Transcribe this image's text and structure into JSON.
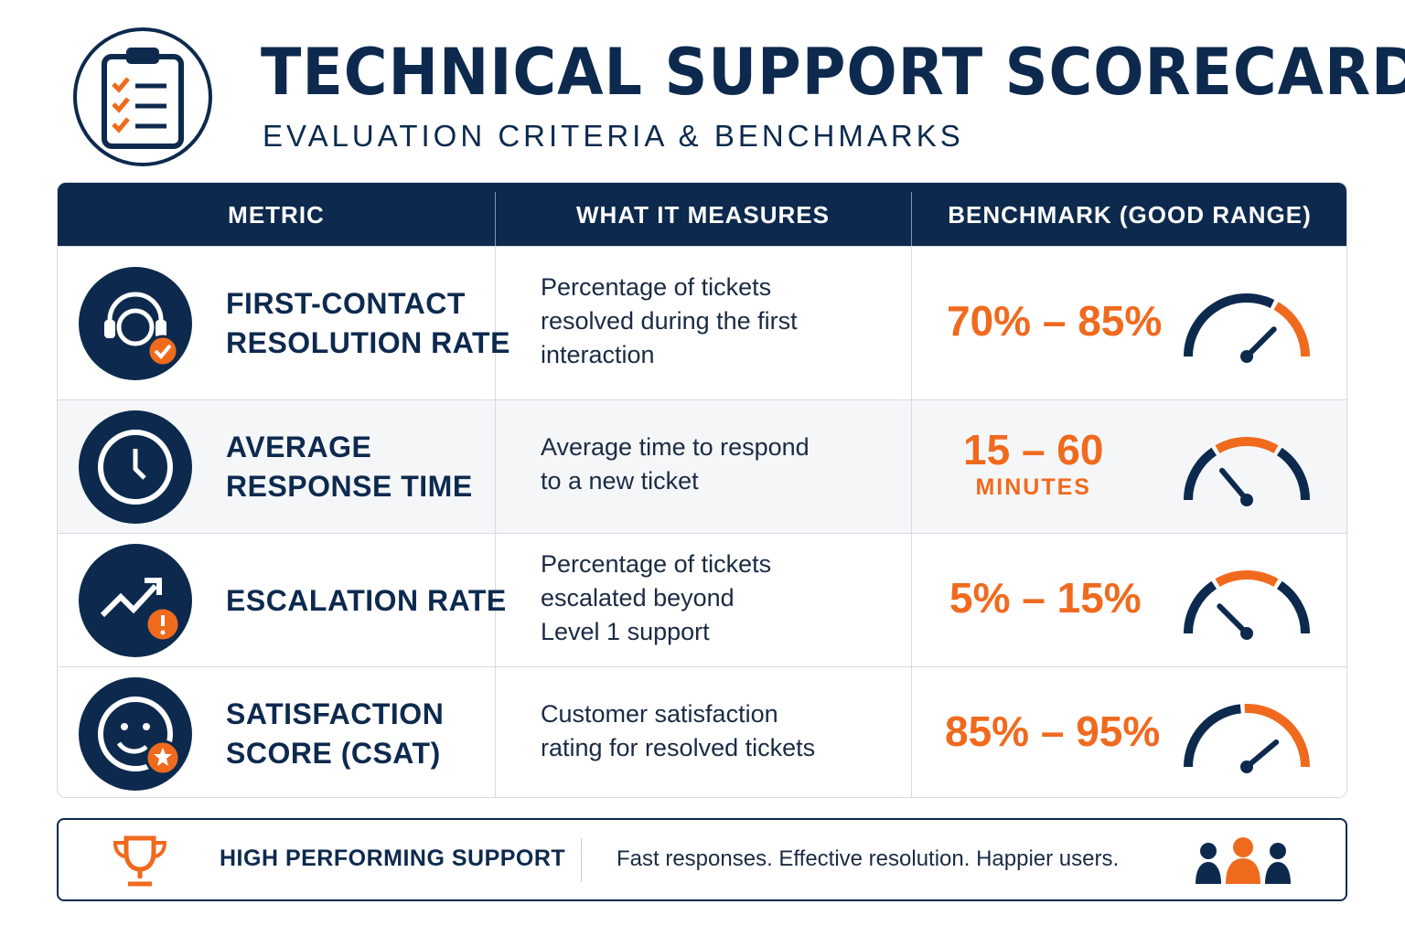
{
  "header": {
    "title": "TECHNICAL SUPPORT SCORECARD",
    "subtitle": "EVALUATION CRITERIA & BENCHMARKS"
  },
  "table": {
    "columns": [
      "METRIC",
      "WHAT IT MEASURES",
      "BENCHMARK (GOOD RANGE)"
    ],
    "rows": [
      {
        "metric": [
          "FIRST-CONTACT",
          "RESOLUTION RATE"
        ],
        "measures": [
          "Percentage of tickets",
          "resolved during the first",
          "interaction"
        ],
        "benchmark": "70% – 85%"
      },
      {
        "metric": [
          "AVERAGE",
          "RESPONSE TIME"
        ],
        "measures": [
          "Average time to respond",
          "to a new ticket"
        ],
        "benchmark": "15 – 60",
        "benchmark_unit": "MINUTES"
      },
      {
        "metric": [
          "ESCALATION RATE"
        ],
        "measures": [
          "Percentage of tickets",
          "escalated beyond",
          "Level 1 support"
        ],
        "benchmark": "5% – 15%"
      },
      {
        "metric": [
          "SATISFACTION",
          "SCORE (CSAT)"
        ],
        "measures": [
          "Customer satisfaction",
          "rating for resolved tickets"
        ],
        "benchmark": "85% – 95%"
      }
    ]
  },
  "footer": {
    "label": "HIGH PERFORMING SUPPORT",
    "tagline": "Fast responses. Effective resolution. Happier users."
  }
}
